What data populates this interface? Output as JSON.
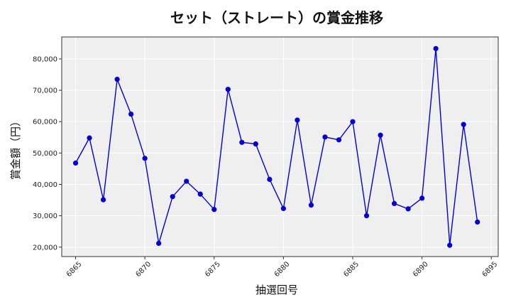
{
  "chart_data": {
    "type": "line",
    "title": "セット（ストレート）の賞金推移",
    "xlabel": "抽選回号",
    "ylabel": "賞金額（円）",
    "x": [
      6865,
      6866,
      6867,
      6868,
      6869,
      6870,
      6871,
      6872,
      6873,
      6874,
      6875,
      6876,
      6877,
      6878,
      6879,
      6880,
      6881,
      6882,
      6883,
      6884,
      6885,
      6886,
      6887,
      6888,
      6889,
      6890,
      6891,
      6892,
      6893,
      6894
    ],
    "series": [
      {
        "values": [
          46800,
          54800,
          35100,
          73500,
          62400,
          48300,
          21200,
          36100,
          41000,
          36900,
          32000,
          70300,
          53400,
          52900,
          41600,
          32300,
          60500,
          33400,
          55100,
          54200,
          60000,
          30000,
          55700,
          33900,
          32200,
          35600,
          83300,
          20600,
          59100,
          28000
        ],
        "color": "#0000dd"
      }
    ],
    "xlim": [
      6864,
      6895.5
    ],
    "ylim": [
      17000,
      87000
    ],
    "xticks": [
      6865,
      6870,
      6875,
      6880,
      6885,
      6890,
      6895
    ],
    "xtick_labels": [
      "6865",
      "6870",
      "6875",
      "6880",
      "6885",
      "6890",
      "6895"
    ],
    "yticks": [
      20000,
      30000,
      40000,
      50000,
      60000,
      70000,
      80000
    ],
    "ytick_labels": [
      "20,000",
      "30,000",
      "40,000",
      "50,000",
      "60,000",
      "70,000",
      "80,000"
    ],
    "grid": true,
    "background": "#efefef"
  }
}
